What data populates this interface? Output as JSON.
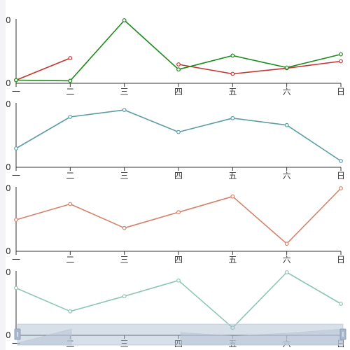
{
  "chart_data": [
    {
      "type": "line",
      "categories": [
        "一",
        "二",
        "三",
        "四",
        "五",
        "六",
        "日"
      ],
      "y_tick_labels": [
        "0",
        "0"
      ],
      "series": [
        {
          "values": [
            0.05,
            0.4,
            null,
            0.3,
            0.15,
            0.24,
            0.35
          ],
          "color": "#c23531"
        },
        {
          "values": [
            0.05,
            0.04,
            1.0,
            0.22,
            0.44,
            0.25,
            0.46
          ],
          "color": "#1a8a1a"
        }
      ],
      "ylim": [
        0,
        1
      ]
    },
    {
      "type": "line",
      "categories": [
        "一",
        "二",
        "三",
        "四",
        "五",
        "六",
        "日"
      ],
      "y_tick_labels": [
        "0",
        "0"
      ],
      "series": [
        {
          "values": [
            0.3,
            0.8,
            0.91,
            0.56,
            0.78,
            0.67,
            0.1
          ],
          "color": "#5b9ea6"
        }
      ],
      "ylim": [
        0,
        1
      ]
    },
    {
      "type": "line",
      "categories": [
        "一",
        "二",
        "三",
        "四",
        "五",
        "六",
        "日"
      ],
      "y_tick_labels": [
        "0",
        "0"
      ],
      "series": [
        {
          "values": [
            0.5,
            0.75,
            0.37,
            0.62,
            0.87,
            0.12,
            1.0
          ],
          "color": "#d4826a"
        }
      ],
      "ylim": [
        0,
        1
      ]
    },
    {
      "type": "line",
      "categories": [
        "一",
        "二",
        "三",
        "四",
        "五",
        "六",
        "日"
      ],
      "y_tick_labels": [
        "0",
        "0"
      ],
      "series": [
        {
          "values": [
            0.75,
            0.38,
            0.62,
            0.87,
            0.12,
            1.0,
            0.5
          ],
          "color": "#8cc6b5"
        }
      ],
      "ylim": [
        0,
        1
      ]
    }
  ],
  "data_zoom": {
    "range_start_percent": 0,
    "range_end_percent": 100
  }
}
